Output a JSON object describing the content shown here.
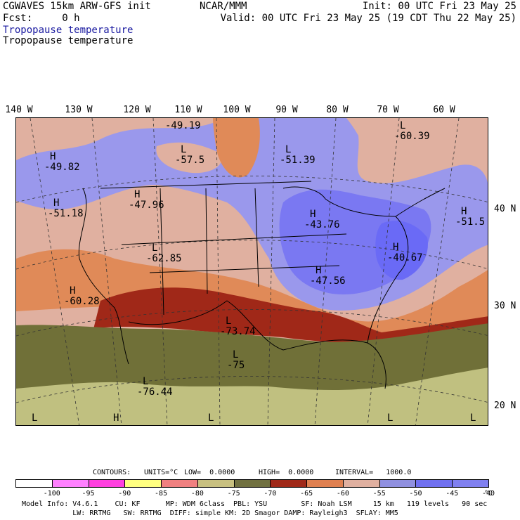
{
  "header": {
    "model": "CGWAVES 15km ARW-GFS init",
    "fcst": "Fcst:     0 h",
    "org": "NCAR/MMM",
    "init": "Init: 00 UTC Fri 23 May 25",
    "valid": "Valid: 00 UTC Fri 23 May 25 (19 CDT Thu 22 May 25)",
    "field_title_1": "Tropopause temperature",
    "field_title_2": "Tropopause temperature"
  },
  "lon_labels": [
    "140 W",
    "130 W",
    "120 W",
    "110 W",
    "100 W",
    "90 W",
    "80 W",
    "70 W",
    "60 W"
  ],
  "lat_labels": [
    "40 N",
    "30 N",
    "20 N"
  ],
  "map_labels": [
    {
      "mark": "H",
      "value": "-49.82"
    },
    {
      "mark": "",
      "value": "-49.19"
    },
    {
      "mark": "L",
      "value": "-57.5"
    },
    {
      "mark": "L",
      "value": "-51.39"
    },
    {
      "mark": "L",
      "value": "-60.39"
    },
    {
      "mark": "H",
      "value": "-51.18"
    },
    {
      "mark": "H",
      "value": "-47.96"
    },
    {
      "mark": "H",
      "value": "-43.76"
    },
    {
      "mark": "H",
      "value": "-51.5"
    },
    {
      "mark": "L",
      "value": "-62.85"
    },
    {
      "mark": "H",
      "value": "-40.67"
    },
    {
      "mark": "H",
      "value": "-47.56"
    },
    {
      "mark": "H",
      "value": "-60.28"
    },
    {
      "mark": "L",
      "value": "-73.74"
    },
    {
      "mark": "L",
      "value": "-75"
    },
    {
      "mark": "L",
      "value": "-76.44"
    },
    {
      "mark": "L",
      "value": ""
    },
    {
      "mark": "H",
      "value": ""
    },
    {
      "mark": "L",
      "value": ""
    },
    {
      "mark": "L",
      "value": ""
    },
    {
      "mark": "L",
      "value": ""
    }
  ],
  "contour_info": {
    "contours": "CONTOURS:",
    "units": "UNITS=°C",
    "low": "LOW=  0.0000",
    "high": "HIGH=  0.0000",
    "interval": "INTERVAL=   1000.0"
  },
  "colorbar": {
    "labels": [
      "-100",
      "-95",
      "-90",
      "-85",
      "-80",
      "-75",
      "-70",
      "-65",
      "-60",
      "-55",
      "-50",
      "-45",
      "-40"
    ],
    "unit": "°C",
    "colors": [
      "#ffffff",
      "#ff80ff",
      "#ff40e0",
      "#ffff80",
      "#f08080",
      "#c8c080",
      "#707040",
      "#a02818",
      "#e08050",
      "#e0b0a0",
      "#9090e0",
      "#7070f0",
      "#8080f0"
    ]
  },
  "footer": {
    "line1": "Model Info: V4.6.1    CU: KF      MP: WDM 6class  PBL: YSU        SF: Noah LSM     15 km   119 levels   90 sec",
    "line2": "            LW: RRTMG   SW: RRTMG  DIFF: simple KM: 2D Smagor DAMP: Rayleigh3  SFLAY: MM5"
  },
  "map_colors": {
    "olive": "#707038",
    "khaki": "#c0c080",
    "darkred": "#a02818",
    "orange": "#e08a58",
    "pink": "#e0b0a0",
    "lavender": "#9a98ec",
    "blue": "#7a78f2",
    "brightblue": "#6a6af6"
  }
}
